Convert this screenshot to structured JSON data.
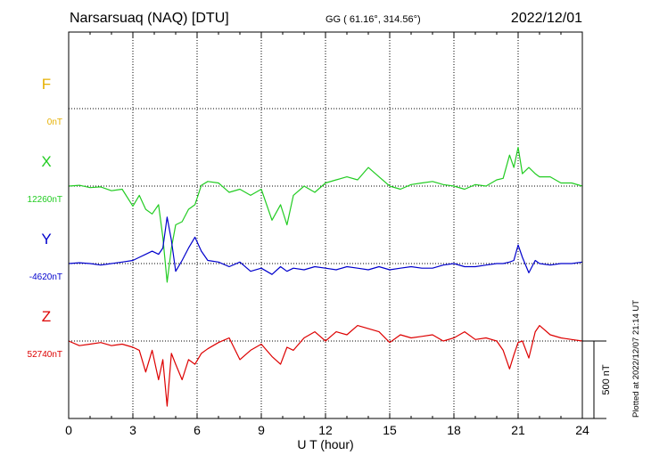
{
  "header": {
    "station": "Narsarsuaq (NAQ)  [DTU]",
    "coords": "GG ( 61.16°, 314.56°)",
    "date": "2022/12/01"
  },
  "side_note": "Plotted at 2022/12/07 21:14 UT",
  "chart_data": {
    "type": "line",
    "xlabel": "U T (hour)",
    "xlim": [
      0,
      24
    ],
    "xticks": [
      "0",
      "3",
      "6",
      "9",
      "12",
      "15",
      "18",
      "21",
      "24"
    ],
    "scale_label": "500 nT",
    "scale_nT": 500,
    "colors": {
      "F": "#e6b000",
      "X": "#22cc22",
      "Y": "#0000cc",
      "Z": "#dd0000"
    },
    "series": [
      {
        "name": "F",
        "baseline": "0nT",
        "x": [],
        "values": []
      },
      {
        "name": "X",
        "baseline": "12260nT",
        "x": [
          0,
          0.5,
          1.0,
          1.5,
          2.0,
          2.5,
          3.0,
          3.3,
          3.6,
          3.9,
          4.2,
          4.4,
          4.6,
          4.8,
          5.0,
          5.3,
          5.6,
          5.9,
          6.2,
          6.5,
          7.0,
          7.5,
          8.0,
          8.5,
          9.0,
          9.5,
          9.9,
          10.2,
          10.5,
          11.0,
          11.5,
          12.0,
          12.5,
          13.0,
          13.5,
          14.0,
          14.5,
          15.0,
          15.5,
          16.0,
          16.5,
          17.0,
          17.5,
          18.0,
          18.5,
          19.0,
          19.5,
          20.0,
          20.3,
          20.6,
          20.8,
          21.0,
          21.2,
          21.5,
          21.8,
          22.0,
          22.5,
          23.0,
          23.5,
          24.0
        ],
        "values": [
          0,
          5,
          -10,
          -5,
          -30,
          -20,
          -130,
          -60,
          -150,
          -180,
          -120,
          -330,
          -620,
          -400,
          -250,
          -230,
          -150,
          -120,
          5,
          30,
          20,
          -40,
          -20,
          -60,
          -20,
          -220,
          -120,
          -250,
          -60,
          0,
          -40,
          20,
          40,
          60,
          40,
          120,
          60,
          0,
          -20,
          10,
          20,
          30,
          10,
          0,
          -20,
          10,
          0,
          40,
          50,
          200,
          120,
          250,
          80,
          120,
          80,
          60,
          60,
          20,
          20,
          0
        ]
      },
      {
        "name": "Y",
        "baseline": "-4620nT",
        "x": [
          0,
          0.5,
          1.0,
          1.5,
          2.0,
          2.5,
          3.0,
          3.3,
          3.6,
          3.9,
          4.2,
          4.4,
          4.6,
          4.8,
          5.0,
          5.3,
          5.6,
          5.9,
          6.2,
          6.5,
          7.0,
          7.5,
          8.0,
          8.5,
          9.0,
          9.5,
          9.9,
          10.2,
          10.5,
          11.0,
          11.5,
          12.0,
          12.5,
          13.0,
          13.5,
          14.0,
          14.5,
          15.0,
          15.5,
          16.0,
          16.5,
          17.0,
          17.5,
          18.0,
          18.5,
          19.0,
          19.5,
          20.0,
          20.3,
          20.6,
          20.8,
          21.0,
          21.2,
          21.5,
          21.8,
          22.0,
          22.5,
          23.0,
          23.5,
          24.0
        ],
        "values": [
          0,
          5,
          0,
          -10,
          0,
          10,
          20,
          40,
          60,
          80,
          60,
          100,
          300,
          150,
          -50,
          20,
          100,
          170,
          80,
          20,
          10,
          -20,
          10,
          -50,
          -30,
          -70,
          -20,
          -50,
          -30,
          -40,
          -20,
          -30,
          -40,
          -20,
          -30,
          -40,
          -20,
          -40,
          -30,
          -20,
          -30,
          -30,
          -10,
          0,
          -20,
          -20,
          -10,
          0,
          0,
          10,
          20,
          120,
          40,
          -60,
          20,
          0,
          -10,
          0,
          0,
          10
        ]
      },
      {
        "name": "Z",
        "baseline": "52740nT",
        "x": [
          0,
          0.5,
          1.0,
          1.5,
          2.0,
          2.5,
          3.0,
          3.3,
          3.6,
          3.9,
          4.2,
          4.4,
          4.6,
          4.8,
          5.0,
          5.3,
          5.6,
          5.9,
          6.2,
          6.5,
          7.0,
          7.5,
          8.0,
          8.5,
          9.0,
          9.5,
          9.9,
          10.2,
          10.5,
          11.0,
          11.5,
          12.0,
          12.5,
          13.0,
          13.5,
          14.0,
          14.5,
          15.0,
          15.5,
          16.0,
          16.5,
          17.0,
          17.5,
          18.0,
          18.5,
          19.0,
          19.5,
          20.0,
          20.3,
          20.6,
          20.8,
          21.0,
          21.2,
          21.5,
          21.8,
          22.0,
          22.5,
          23.0,
          23.5,
          24.0
        ],
        "values": [
          0,
          -30,
          -20,
          -10,
          -30,
          -20,
          -40,
          -60,
          -200,
          -60,
          -250,
          -120,
          -420,
          -80,
          -150,
          -250,
          -120,
          -150,
          -80,
          -50,
          -10,
          20,
          -120,
          -60,
          -20,
          -100,
          -150,
          -40,
          -60,
          20,
          60,
          0,
          60,
          40,
          100,
          80,
          60,
          -10,
          40,
          20,
          30,
          40,
          0,
          20,
          60,
          10,
          20,
          0,
          -60,
          -180,
          -90,
          -10,
          0,
          -110,
          60,
          100,
          40,
          20,
          10,
          0
        ]
      }
    ]
  }
}
